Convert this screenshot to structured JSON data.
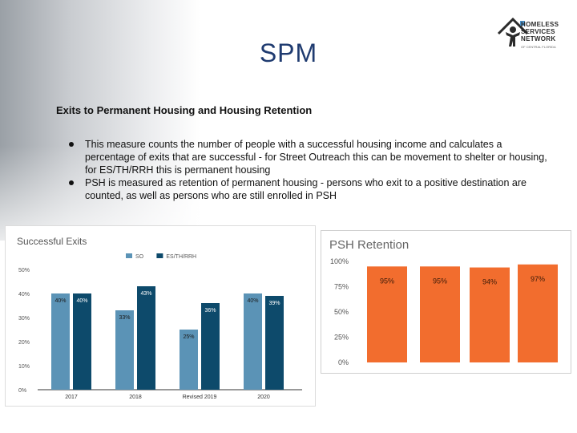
{
  "header": {
    "title": "SPM",
    "logo": {
      "icon": "house-person-icon",
      "lines": [
        "HOMELESS",
        "SERVICES",
        "NETWORK"
      ],
      "tagline": "OF CENTRAL FLORIDA"
    }
  },
  "section": {
    "subtitle": "Exits to Permanent Housing and Housing Retention",
    "bullets": [
      "This measure counts the number of people with a successful housing income and calculates a percentage of exits that are successful - for Street Outreach this can be movement to shelter or housing, for ES/TH/RRH this is permanent housing",
      "PSH is measured as retention of permanent housing - persons who exit to a positive destination are counted, as well as persons who are still enrolled in PSH"
    ]
  },
  "chart_data": [
    {
      "type": "bar",
      "title": "Successful Exits",
      "categories": [
        "2017",
        "2018",
        "Revised 2019",
        "2020"
      ],
      "series": [
        {
          "name": "SO",
          "values": [
            40,
            33,
            25,
            40
          ],
          "labels": [
            "40%",
            "33%",
            "25%",
            "40%"
          ],
          "color": "#5b93b6"
        },
        {
          "name": "ES/TH/RRH",
          "values": [
            40,
            43,
            36,
            39
          ],
          "labels": [
            "40%",
            "43%",
            "36%",
            "39%"
          ],
          "color": "#0d4a6b"
        }
      ],
      "yticks": [
        "0%",
        "10%",
        "20%",
        "30%",
        "40%",
        "50%"
      ],
      "ylim": [
        0,
        50
      ],
      "legend": "top",
      "grid": false
    },
    {
      "type": "bar",
      "title": "PSH Retention",
      "categories": [
        "",
        "",
        "",
        ""
      ],
      "values": [
        95,
        95,
        94,
        97
      ],
      "labels": [
        "95%",
        "95%",
        "94%",
        "97%"
      ],
      "color": "#f26d2e",
      "yticks": [
        "0%",
        "25%",
        "50%",
        "75%",
        "100%"
      ],
      "ylim": [
        0,
        100
      ],
      "grid": false
    }
  ]
}
